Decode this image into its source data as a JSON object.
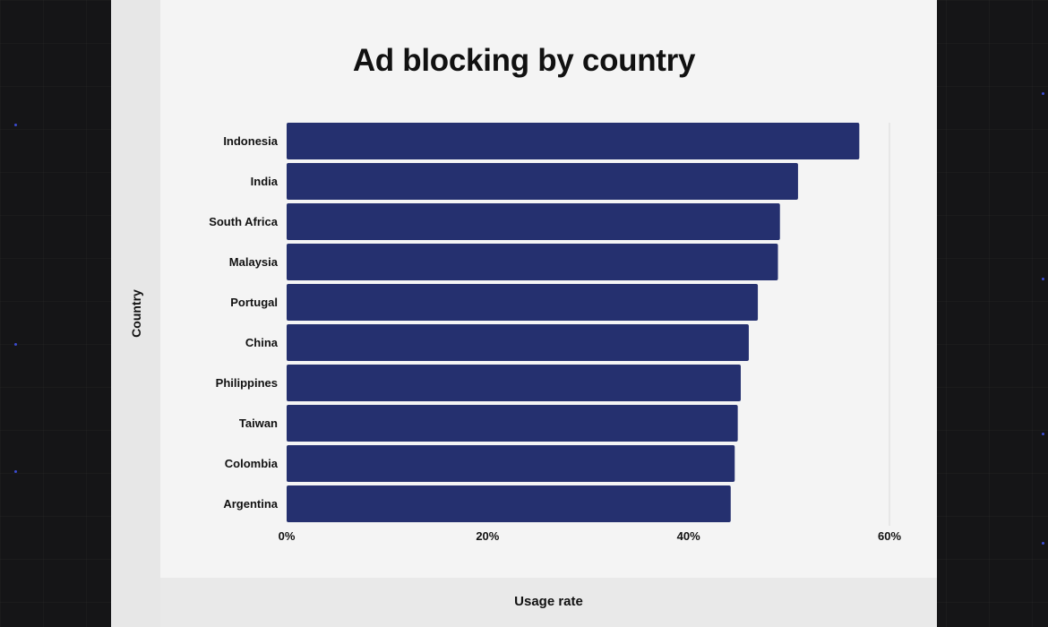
{
  "chart_data": {
    "type": "bar",
    "orientation": "horizontal",
    "title": "Ad blocking by country",
    "xlabel": "Usage rate",
    "ylabel": "Country",
    "categories": [
      "Indonesia",
      "India",
      "South Africa",
      "Malaysia",
      "Portugal",
      "China",
      "Philippines",
      "Taiwan",
      "Colombia",
      "Argentina"
    ],
    "values": [
      57.0,
      50.9,
      49.1,
      48.9,
      46.9,
      46.0,
      45.2,
      44.9,
      44.6,
      44.2
    ],
    "xlim": [
      0,
      60
    ],
    "ticks": [
      "0%",
      "20%",
      "40%",
      "60%"
    ],
    "grid": false,
    "bar_color": "#25306f"
  },
  "colors": {
    "background": "#151517",
    "card": "#f4f4f4",
    "bar": "#25306f",
    "text": "#111111"
  }
}
